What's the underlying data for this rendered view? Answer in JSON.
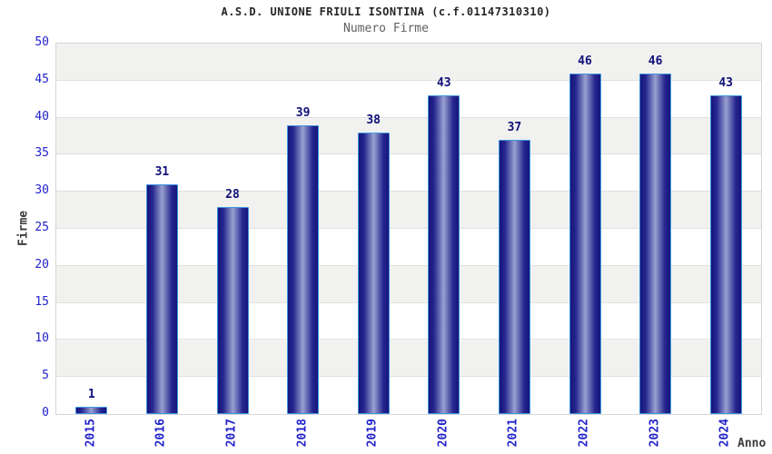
{
  "page": {
    "background": "#ffffff"
  },
  "chart_data": {
    "type": "bar",
    "title": "A.S.D. UNIONE FRIULI ISONTINA (c.f.01147310310)",
    "subtitle": "Numero Firme",
    "xlabel": "Anno",
    "ylabel": "Firme",
    "categories": [
      "2015",
      "2016",
      "2017",
      "2018",
      "2019",
      "2020",
      "2021",
      "2022",
      "2023",
      "2024"
    ],
    "values": [
      1,
      31,
      28,
      39,
      38,
      43,
      37,
      46,
      46,
      43
    ],
    "ylim": [
      0,
      50
    ],
    "ytick_step": 5,
    "y_ticks": [
      "0",
      "5",
      "10",
      "15",
      "20",
      "25",
      "30",
      "35",
      "40",
      "45",
      "50"
    ],
    "grid": true,
    "legend": false,
    "bar_value_labels_shown": true,
    "x_tick_rotation_degrees": 90,
    "background_bands": "alternating gray/white every 5 units"
  },
  "colors": {
    "page_bg": "#ffffff",
    "title_color": "#262626",
    "subtitle_color": "#5f5f5f",
    "axis_title_color": "#3c3c3c",
    "tick_label_blue": "#2222cc",
    "value_label_navy": "#10107a",
    "bar_dark": "#15157b",
    "bar_mid": "#26268f",
    "bar_light": "#99a1d0",
    "bar_border": "#3f96e0",
    "band_gray": "#f1f1ef",
    "plot_border": "#d6d6d4",
    "gridline": "#e1e1df"
  }
}
